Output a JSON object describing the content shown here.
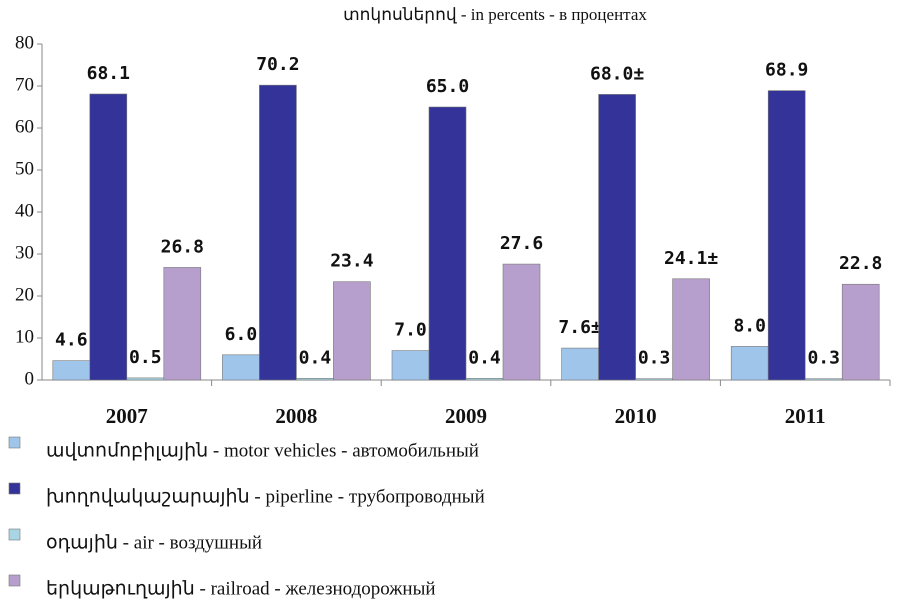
{
  "chart_data": {
    "type": "bar",
    "subtitle": "տոկոսներով - in percents - в процентах",
    "categories": [
      "2007",
      "2008",
      "2009",
      "2010",
      "2011"
    ],
    "series": [
      {
        "name": "ավտոմոբիլային - motor vehicles - автомобильный",
        "color": "#9fc5ea",
        "values": [
          4.6,
          6.0,
          7.0,
          7.6,
          8.0
        ],
        "value_labels": [
          "4.6",
          "6.0",
          "7.0",
          "7.6±",
          "8.0"
        ]
      },
      {
        "name": "խողովակաշարային - piperline - трубопроводный",
        "color": "#333399",
        "values": [
          68.1,
          70.2,
          65.0,
          68.0,
          68.9
        ],
        "value_labels": [
          "68.1",
          "70.2",
          "65.0",
          "68.0±",
          "68.9"
        ]
      },
      {
        "name": "օդային - air - воздушный",
        "color": "#a9d6e4",
        "values": [
          0.5,
          0.4,
          0.4,
          0.3,
          0.3
        ],
        "value_labels": [
          "0.5",
          "0.4",
          "0.4",
          "0.3",
          "0.3"
        ]
      },
      {
        "name": "երկաթուղային - railroad - железнодорожный",
        "color": "#b79fcd",
        "values": [
          26.8,
          23.4,
          27.6,
          24.1,
          22.8
        ],
        "value_labels": [
          "26.8",
          "23.4",
          "27.6",
          "24.1±",
          "22.8"
        ]
      }
    ],
    "ylim": [
      0,
      80
    ],
    "yticks": [
      0,
      10,
      20,
      30,
      40,
      50,
      60,
      70,
      80
    ],
    "grid": false
  }
}
